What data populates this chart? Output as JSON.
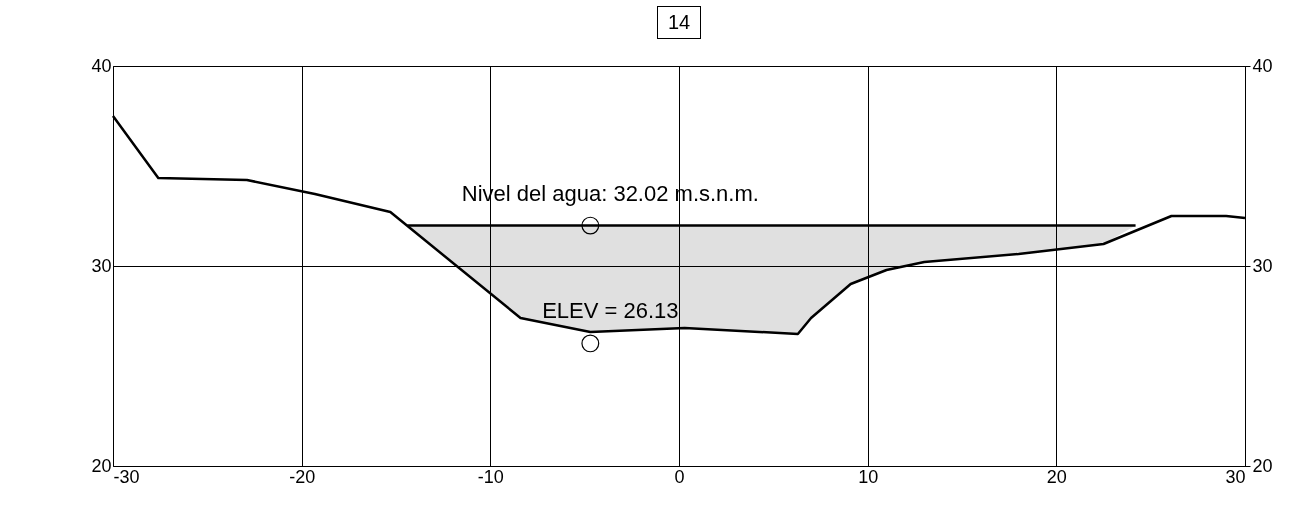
{
  "chart_data": {
    "type": "line",
    "title": "14",
    "xlim": [
      -30,
      30
    ],
    "xticks": [
      -30,
      -20,
      -10,
      0,
      10,
      20,
      30
    ],
    "ylim": [
      20,
      40
    ],
    "yticks": [
      20,
      30,
      40
    ],
    "y2lim": [
      20,
      40
    ],
    "y2ticks": [
      20,
      30,
      40
    ],
    "grid": true,
    "series": [
      {
        "color": "#000000",
        "x": [
          -30,
          -27.6,
          -22.9,
          -19.3,
          -15.3,
          -8.4,
          -4.7,
          0.3,
          6.3,
          7.0,
          9.1,
          11.0,
          13,
          18,
          22.5,
          26.1,
          29,
          30
        ],
        "values": [
          37.5,
          34.4,
          34.3,
          33.6,
          32.7,
          27.4,
          26.7,
          26.9,
          26.6,
          27.4,
          29.1,
          29.8,
          30.2,
          30.6,
          31.1,
          32.5,
          32.5,
          32.4
        ]
      },
      {
        "color": "#000000",
        "x": [
          -14.4,
          -8.4,
          -4.7,
          0.3,
          6.3,
          7.0,
          9.1,
          11.0,
          13,
          18,
          22.5,
          24.2
        ],
        "values": [
          32.02,
          32.02,
          32.02,
          32.02,
          32.02,
          32.02,
          32.02,
          32.02,
          32.02,
          32.02,
          32.02,
          32.02
        ],
        "lower": [
          32.02,
          27.4,
          26.7,
          26.9,
          26.6,
          27.4,
          29.1,
          29.8,
          30.2,
          30.6,
          31.1,
          32.02
        ],
        "upper": [
          32.02,
          32.02,
          32.02,
          32.02,
          32.02,
          32.02,
          32.02,
          32.02,
          32.02,
          32.02,
          32.02,
          32.02
        ]
      },
      {
        "type": "scatter",
        "color": "#000000",
        "marker": "circle",
        "x": [
          -4.7,
          -4.7
        ],
        "values": [
          32.02,
          26.13
        ]
      }
    ],
    "annotations": [
      {
        "text": "Nivel del agua: 32.02 m.s.n.m.",
        "x": -4.7,
        "y": 32.02
      },
      {
        "text": "ELEV = 26.13",
        "x": -4.7,
        "y": 26.13
      }
    ]
  }
}
